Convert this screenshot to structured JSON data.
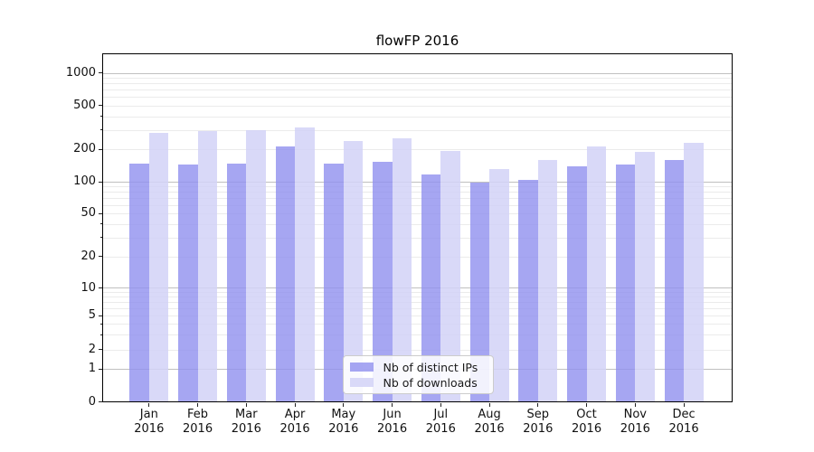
{
  "chart_data": {
    "type": "bar",
    "title": "flowFP 2016",
    "categories": [
      "Jan 2016",
      "Feb 2016",
      "Mar 2016",
      "Apr 2016",
      "May 2016",
      "Jun 2016",
      "Jul 2016",
      "Aug 2016",
      "Sep 2016",
      "Oct 2016",
      "Nov 2016",
      "Dec 2016"
    ],
    "x_tick_months": [
      "Jan",
      "Feb",
      "Mar",
      "Apr",
      "May",
      "Jun",
      "Jul",
      "Aug",
      "Sep",
      "Oct",
      "Nov",
      "Dec"
    ],
    "x_tick_year": "2016",
    "series": [
      {
        "name": "Nb of distinct IPs",
        "color": "#a6a6f2",
        "fill": "rgba(144,144,239,0.8)",
        "values": [
          148,
          146,
          147,
          214,
          147,
          152,
          117,
          98,
          103,
          140,
          146,
          159
        ]
      },
      {
        "name": "Nb of downloads",
        "color": "#d9d9f8",
        "fill": "rgba(210,210,247,0.85)",
        "values": [
          281,
          294,
          297,
          317,
          240,
          252,
          192,
          131,
          158,
          212,
          191,
          228
        ]
      }
    ],
    "ylabel": "",
    "xlabel": "",
    "y_scale": "symlog",
    "y_tick_values": [
      0,
      1,
      2,
      5,
      10,
      20,
      50,
      100,
      200,
      500,
      1000
    ],
    "ylim": [
      0,
      1500
    ],
    "grid": {
      "horizontal": true,
      "minor": true,
      "major_color": "#c0c0c0",
      "minor_color": "#ebebeb"
    },
    "legend": {
      "position": "lower center",
      "labels": [
        "Nb of distinct IPs",
        "Nb of downloads"
      ]
    }
  }
}
